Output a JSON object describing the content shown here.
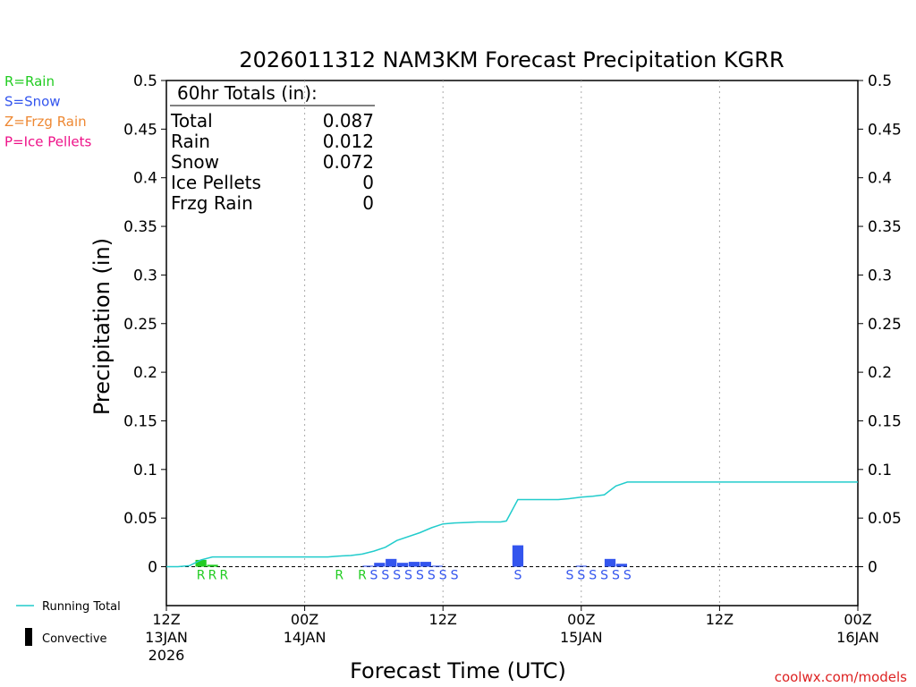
{
  "chart_data": {
    "type": "bar",
    "title": "2026011312 NAM3KM Forecast Precipitation KGRR",
    "xlabel": "Forecast Time (UTC)",
    "ylabel": "Precipitation (in)",
    "ylim": [
      -0.04,
      0.5
    ],
    "xlim_hours": [
      0,
      60
    ],
    "y_ticks": [
      0,
      0.05,
      0.1,
      0.15,
      0.2,
      0.25,
      0.3,
      0.35,
      0.4,
      0.45,
      0.5
    ],
    "y_tick_labels": [
      "0",
      "0.05",
      "0.1",
      "0.15",
      "0.2",
      "0.25",
      "0.3",
      "0.35",
      "0.4",
      "0.45",
      "0.5"
    ],
    "x_ticks": [
      {
        "hour": 0,
        "lines": [
          "12Z",
          "13JAN",
          "2026"
        ]
      },
      {
        "hour": 12,
        "lines": [
          "00Z",
          "14JAN"
        ]
      },
      {
        "hour": 24,
        "lines": [
          "12Z"
        ]
      },
      {
        "hour": 36,
        "lines": [
          "00Z",
          "15JAN"
        ]
      },
      {
        "hour": 48,
        "lines": [
          "12Z"
        ]
      },
      {
        "hour": 60,
        "lines": [
          "00Z",
          "16JAN"
        ]
      }
    ],
    "grid_hours": [
      12,
      24,
      36,
      48
    ],
    "legend": [
      {
        "code": "R",
        "text": "R=Rain",
        "color": "#22cc22"
      },
      {
        "code": "S",
        "text": "S=Snow",
        "color": "#3355ee"
      },
      {
        "code": "Z",
        "text": "Z=Frzg Rain",
        "color": "#ee8833"
      },
      {
        "code": "P",
        "text": "P=Ice Pellets",
        "color": "#ee1188"
      }
    ],
    "legend_bottom": [
      {
        "name": "running-total",
        "text": "Running Total",
        "color": "#22cccc"
      },
      {
        "name": "convective",
        "text": "Convective",
        "color": "#000000"
      }
    ],
    "totals": {
      "heading": "60hr Totals (in):",
      "rows": [
        {
          "label": "Total",
          "value": "0.087"
        },
        {
          "label": "Rain",
          "value": "0.012"
        },
        {
          "label": "Snow",
          "value": "0.072"
        },
        {
          "label": "Ice Pellets",
          "value": "0"
        },
        {
          "label": "Frzg Rain",
          "value": "0"
        }
      ]
    },
    "bars": [
      {
        "hour": 3,
        "value": 0.007,
        "type": "R"
      },
      {
        "hour": 4,
        "value": 0.002,
        "type": "R"
      },
      {
        "hour": 17.5,
        "value": 0.001,
        "type": "S"
      },
      {
        "hour": 18.5,
        "value": 0.004,
        "type": "S"
      },
      {
        "hour": 19.5,
        "value": 0.008,
        "type": "S"
      },
      {
        "hour": 20.5,
        "value": 0.004,
        "type": "S"
      },
      {
        "hour": 21.5,
        "value": 0.005,
        "type": "S"
      },
      {
        "hour": 22.5,
        "value": 0.005,
        "type": "S"
      },
      {
        "hour": 23.5,
        "value": 0.001,
        "type": "S"
      },
      {
        "hour": 30.5,
        "value": 0.022,
        "type": "S"
      },
      {
        "hour": 36,
        "value": 0.001,
        "type": "S"
      },
      {
        "hour": 38.5,
        "value": 0.008,
        "type": "S"
      },
      {
        "hour": 39.5,
        "value": 0.003,
        "type": "S"
      }
    ],
    "precip_markers": [
      {
        "hour": 3,
        "type": "R"
      },
      {
        "hour": 4,
        "type": "R"
      },
      {
        "hour": 5,
        "type": "R"
      },
      {
        "hour": 15,
        "type": "R"
      },
      {
        "hour": 17,
        "type": "R"
      },
      {
        "hour": 18,
        "type": "S"
      },
      {
        "hour": 19,
        "type": "S"
      },
      {
        "hour": 20,
        "type": "S"
      },
      {
        "hour": 21,
        "type": "S"
      },
      {
        "hour": 22,
        "type": "S"
      },
      {
        "hour": 23,
        "type": "S"
      },
      {
        "hour": 24,
        "type": "S"
      },
      {
        "hour": 25,
        "type": "S"
      },
      {
        "hour": 30.5,
        "type": "S"
      },
      {
        "hour": 35,
        "type": "S"
      },
      {
        "hour": 36,
        "type": "S"
      },
      {
        "hour": 37,
        "type": "S"
      },
      {
        "hour": 38,
        "type": "S"
      },
      {
        "hour": 39,
        "type": "S"
      },
      {
        "hour": 40,
        "type": "S"
      }
    ],
    "running_total": {
      "name": "Running Total",
      "x": [
        0,
        1,
        2,
        3,
        4,
        5,
        6,
        8,
        10,
        12,
        14,
        15,
        16,
        17,
        18,
        19,
        20,
        22,
        23,
        24,
        25,
        26,
        27,
        28,
        29,
        29.5,
        30.5,
        32,
        34,
        35,
        36,
        37,
        38,
        39,
        40,
        44,
        48,
        52,
        56,
        60
      ],
      "y": [
        0,
        0,
        0.001,
        0.007,
        0.01,
        0.01,
        0.01,
        0.01,
        0.01,
        0.01,
        0.01,
        0.011,
        0.0115,
        0.013,
        0.016,
        0.02,
        0.027,
        0.035,
        0.04,
        0.044,
        0.045,
        0.0455,
        0.046,
        0.046,
        0.046,
        0.047,
        0.069,
        0.069,
        0.069,
        0.07,
        0.0715,
        0.0725,
        0.074,
        0.083,
        0.087,
        0.087,
        0.087,
        0.087,
        0.087,
        0.087
      ],
      "color": "#22cccc"
    }
  },
  "footer": {
    "credit": "coolwx.com/models"
  }
}
